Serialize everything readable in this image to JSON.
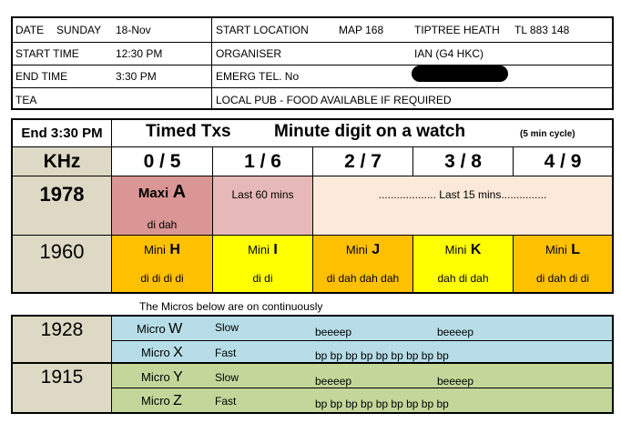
{
  "info": {
    "date_label": "DATE",
    "date_day": "SUNDAY",
    "date_value": "18-Nov",
    "start_time_label": "START TIME",
    "start_time_value": "12:30 PM",
    "end_time_label": "END TIME",
    "end_time_value": "3:30 PM",
    "tea_label": "TEA",
    "start_location_label": "START LOCATION",
    "map_ref": "MAP 168",
    "location_name": "TIPTREE HEATH",
    "grid_ref": "TL 883 148",
    "organiser_label": "ORGANISER",
    "organiser_value": "IAN (G4 HKC)",
    "emerg_label": "EMERG TEL. No",
    "tea_value": "LOCAL PUB - FOOD AVAILABLE IF REQUIRED"
  },
  "schedule": {
    "end_time_header": "End 3:30 PM",
    "timed_title": "Timed Txs",
    "minute_title": "Minute digit on a watch",
    "cycle_note": "(5 min cycle)",
    "khz_label": "KHz",
    "slots": [
      "0 / 5",
      "1 / 6",
      "2 / 7",
      "3 / 8",
      "4 / 9"
    ],
    "row_1978": {
      "freq": "1978",
      "maxi_prefix": "Maxi",
      "maxi_letter": "A",
      "maxi_code": "di dah",
      "last60": "Last 60 mins",
      "last15": "................... Last 15 mins..............."
    },
    "row_1960": {
      "freq": "1960",
      "minis": [
        {
          "prefix": "Mini",
          "letter": "H",
          "code": "di di di di"
        },
        {
          "prefix": "Mini",
          "letter": "I",
          "code": "di di"
        },
        {
          "prefix": "Mini",
          "letter": "J",
          "code": "di dah dah dah"
        },
        {
          "prefix": "Mini",
          "letter": "K",
          "code": "dah di dah"
        },
        {
          "prefix": "Mini",
          "letter": "L",
          "code": "di dah di di"
        }
      ]
    }
  },
  "micros": {
    "note": "The Micros below are on continuously",
    "rows": [
      {
        "freq": "1928",
        "prefix": "Micro",
        "letter": "W",
        "speed": "Slow",
        "p1": "beeeep",
        "p2": "beeeep"
      },
      {
        "prefix": "Micro",
        "letter": "X",
        "speed": "Fast",
        "p1": "bp bp bp bp bp bp bp bp bp"
      },
      {
        "freq": "1915",
        "prefix": "Micro",
        "letter": "Y",
        "speed": "Slow",
        "p1": "beeeep",
        "p2": "beeeep"
      },
      {
        "prefix": "Micro",
        "letter": "Z",
        "speed": "Fast",
        "p1": "bp bp bp bp bp bp bp bp bp"
      }
    ]
  },
  "colors": {
    "grey": "#ddd9c4",
    "maxi": "#da9694",
    "last60": "#e6b8b7",
    "last15": "#fde9d9",
    "mini_orange": "#ffc000",
    "mini_yellow": "#ffff00",
    "micro_blue": "#b7dee8",
    "micro_green": "#c4d79b"
  }
}
